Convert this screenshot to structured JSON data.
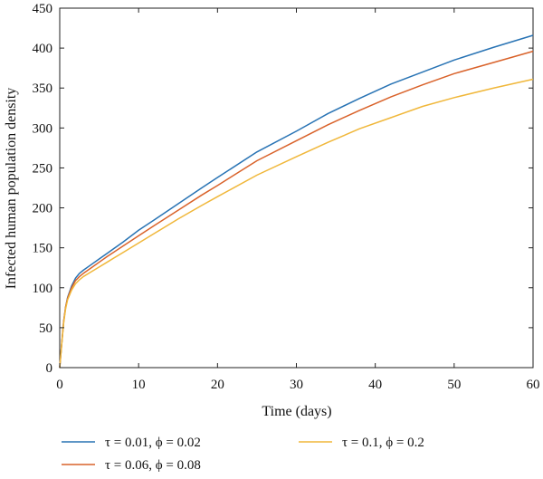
{
  "chart_data": {
    "type": "line",
    "xlabel": "Time (days)",
    "ylabel": "Infected human population density",
    "xlim": [
      0,
      60
    ],
    "ylim": [
      0,
      450
    ],
    "xticks": [
      0,
      10,
      20,
      30,
      40,
      50,
      60
    ],
    "yticks": [
      0,
      50,
      100,
      150,
      200,
      250,
      300,
      350,
      400,
      450
    ],
    "grid": false,
    "legend_position": "bottom",
    "series": [
      {
        "name": "τ = 0.01,  ϕ = 0.02",
        "color": "#2873b4",
        "x": [
          0,
          0.25,
          0.5,
          0.75,
          1,
          1.5,
          2,
          2.5,
          3,
          4,
          5,
          6,
          8,
          10,
          12,
          15,
          18,
          20,
          25,
          30,
          34,
          38,
          42,
          46,
          50,
          55,
          60
        ],
        "y": [
          0,
          30,
          58,
          76,
          88,
          102,
          112,
          118,
          122,
          129,
          136,
          143,
          157,
          172,
          185,
          205,
          225,
          238,
          270,
          296,
          318,
          337,
          355,
          370,
          385,
          401,
          416
        ]
      },
      {
        "name": "τ = 0.06, ϕ = 0.08",
        "color": "#d9622a",
        "x": [
          0,
          0.25,
          0.5,
          0.75,
          1,
          1.5,
          2,
          2.5,
          3,
          4,
          5,
          6,
          8,
          10,
          12,
          15,
          18,
          20,
          25,
          30,
          34,
          38,
          42,
          46,
          50,
          55,
          60
        ],
        "y": [
          0,
          30,
          58,
          76,
          87,
          100,
          109,
          114,
          118,
          125,
          132,
          139,
          152,
          165,
          178,
          197,
          216,
          228,
          259,
          284,
          304,
          322,
          339,
          354,
          368,
          382,
          396
        ]
      },
      {
        "name": "τ = 0.1, ϕ = 0.2",
        "color": "#f0b73a",
        "x": [
          0,
          0.25,
          0.5,
          0.75,
          1,
          1.5,
          2,
          2.5,
          3,
          4,
          5,
          6,
          8,
          10,
          12,
          15,
          18,
          20,
          25,
          30,
          34,
          38,
          42,
          46,
          50,
          55,
          60
        ],
        "y": [
          0,
          29,
          56,
          74,
          85,
          97,
          105,
          110,
          114,
          120,
          126,
          132,
          144,
          156,
          168,
          186,
          203,
          214,
          241,
          264,
          282,
          299,
          313,
          327,
          338,
          350,
          361
        ]
      }
    ]
  }
}
